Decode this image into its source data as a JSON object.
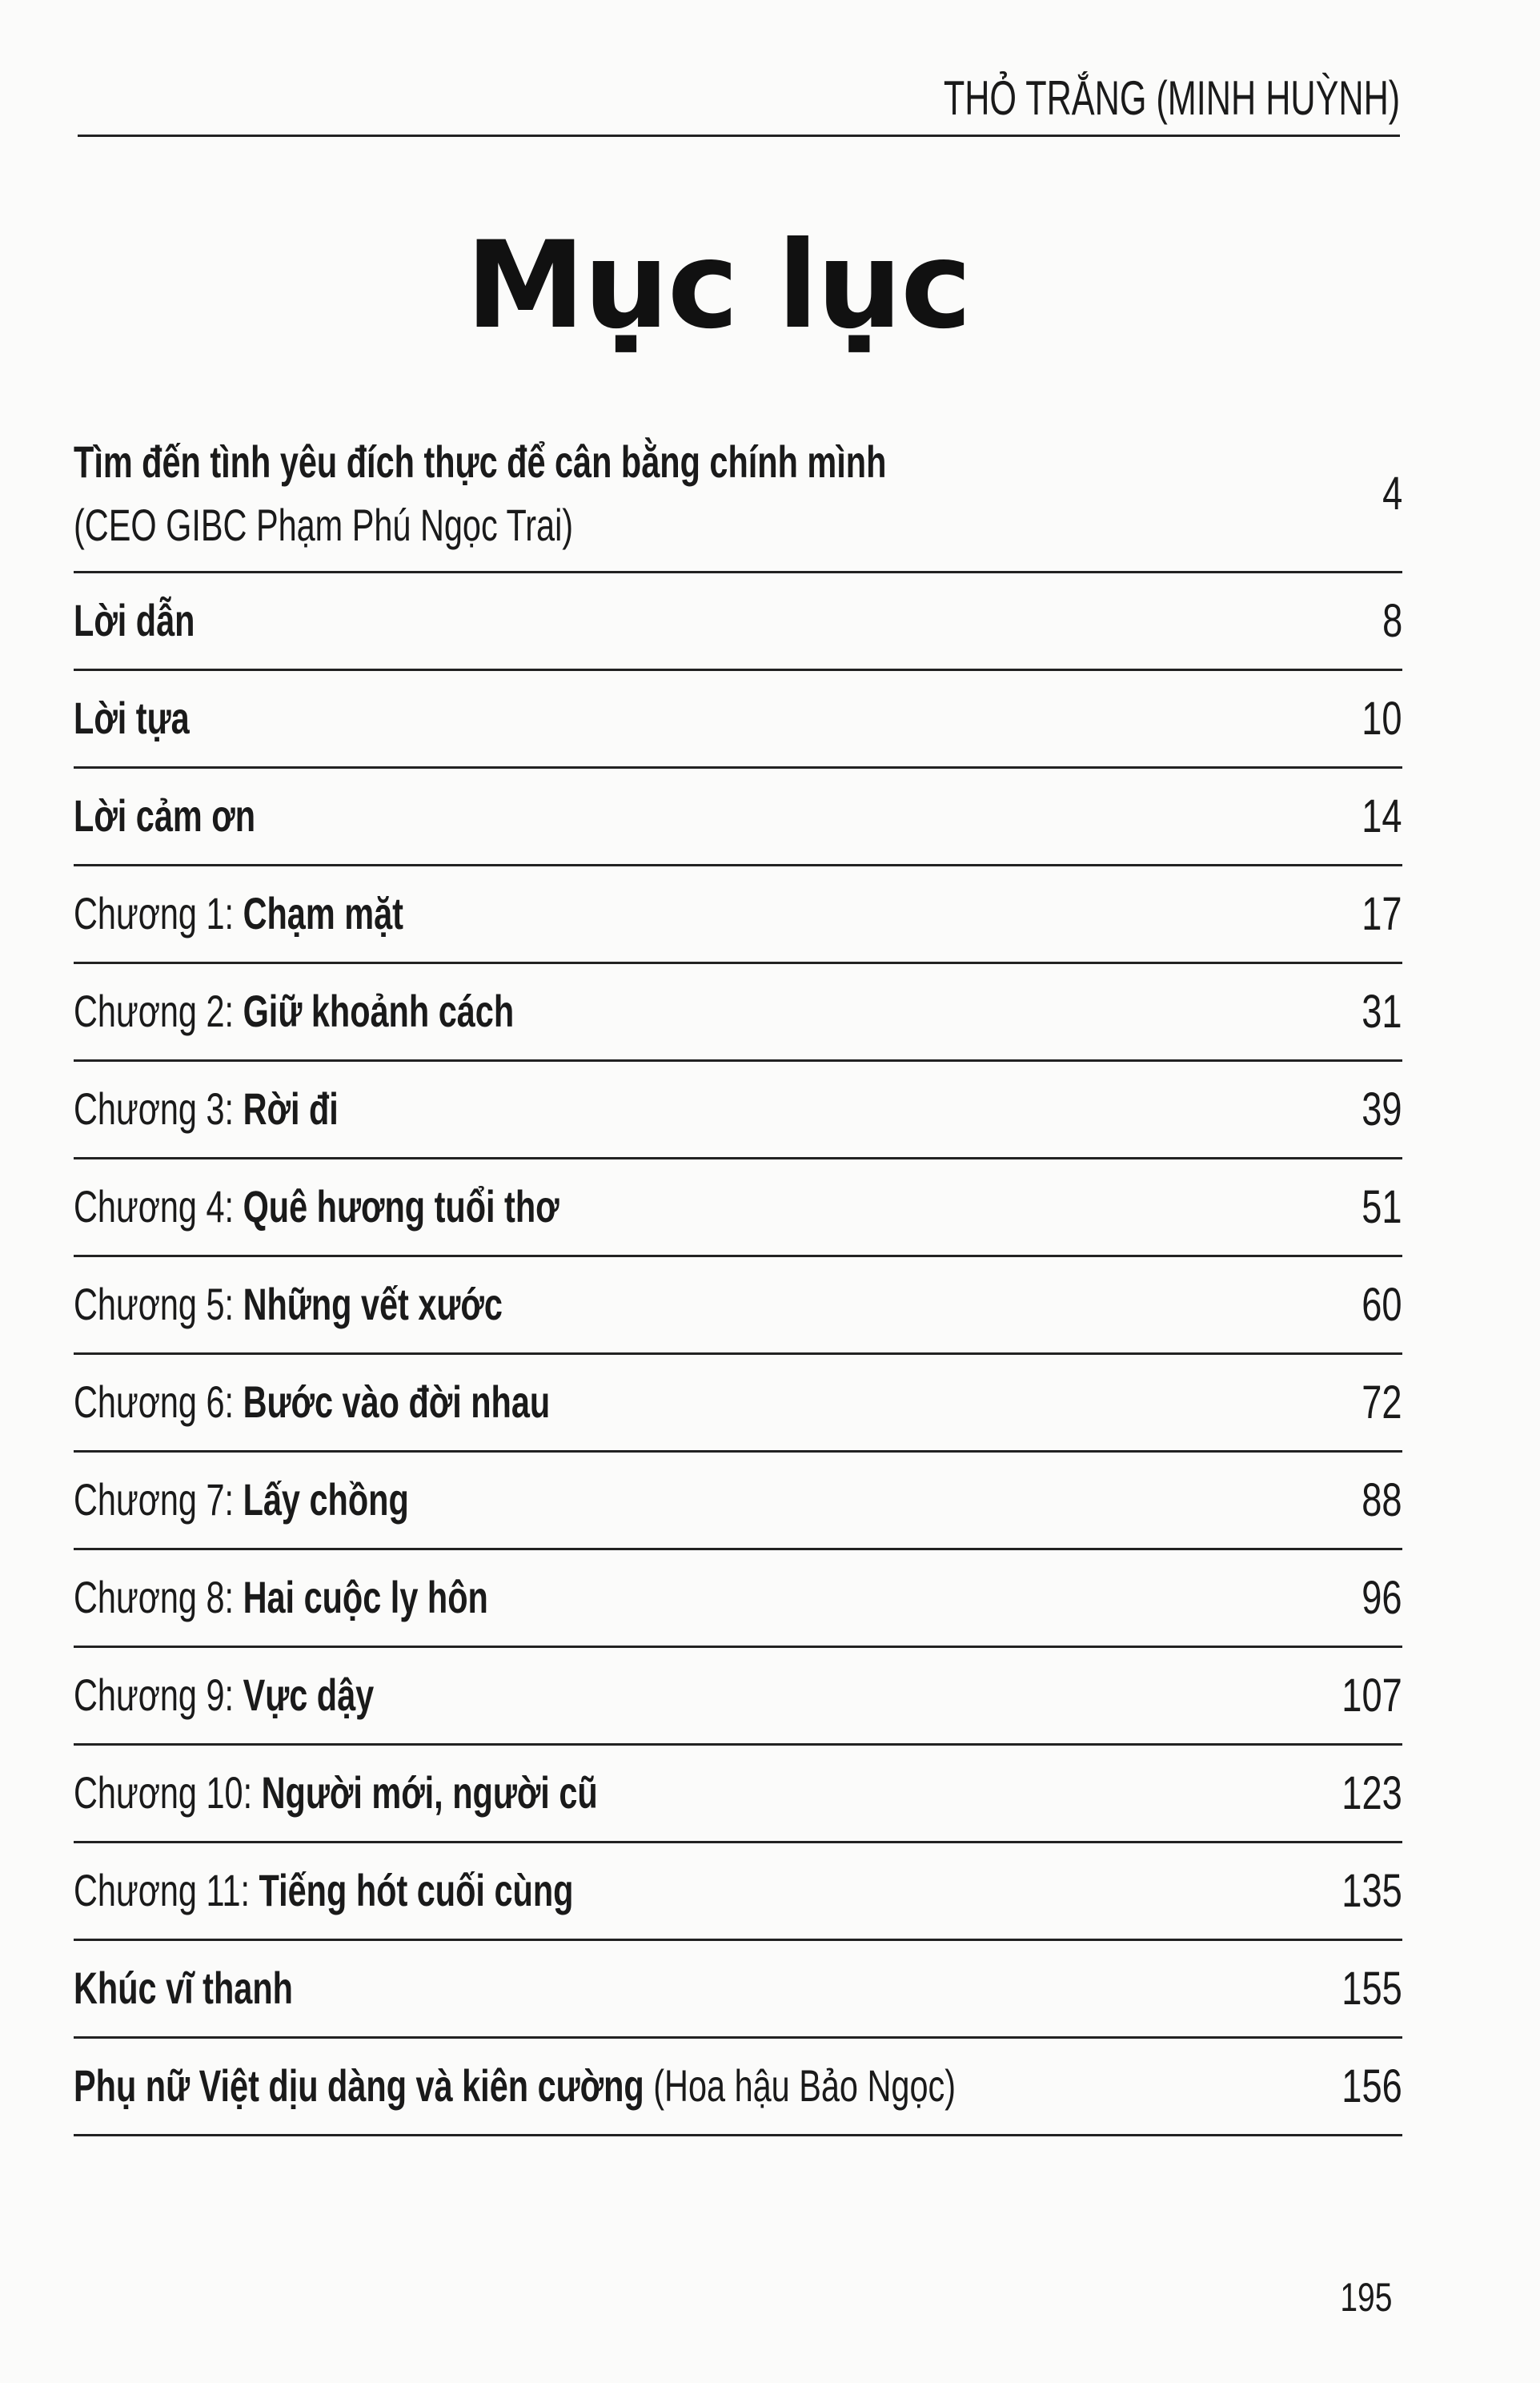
{
  "header": {
    "running_head": "THỎ TRẮNG (MINH HUỲNH)"
  },
  "title": "Mục lục",
  "entries": [
    {
      "prefix": "",
      "title": "Tìm đến tình yêu đích thực để cân bằng chính mình",
      "suffix": "(CEO GIBC Phạm Phú Ngọc Trai)",
      "page": "4"
    },
    {
      "prefix": "",
      "title": "Lời dẫn",
      "suffix": "",
      "page": "8"
    },
    {
      "prefix": "",
      "title": "Lời tựa",
      "suffix": "",
      "page": "10"
    },
    {
      "prefix": "",
      "title": "Lời cảm ơn",
      "suffix": "",
      "page": "14"
    },
    {
      "prefix": "Chương 1: ",
      "title": "Chạm mặt",
      "suffix": "",
      "page": "17"
    },
    {
      "prefix": "Chương 2: ",
      "title": "Giữ khoảnh cách",
      "suffix": "",
      "page": "31"
    },
    {
      "prefix": "Chương 3: ",
      "title": "Rời đi",
      "suffix": "",
      "page": "39"
    },
    {
      "prefix": "Chương 4: ",
      "title": "Quê hương tuổi thơ",
      "suffix": "",
      "page": "51"
    },
    {
      "prefix": "Chương 5: ",
      "title": "Những vết xước",
      "suffix": "",
      "page": "60"
    },
    {
      "prefix": "Chương 6: ",
      "title": "Bước vào đời nhau",
      "suffix": "",
      "page": "72"
    },
    {
      "prefix": "Chương 7: ",
      "title": "Lấy chồng",
      "suffix": "",
      "page": "88"
    },
    {
      "prefix": "Chương 8: ",
      "title": "Hai cuộc ly hôn",
      "suffix": "",
      "page": "96"
    },
    {
      "prefix": "Chương 9: ",
      "title": "Vực dậy",
      "suffix": "",
      "page": "107"
    },
    {
      "prefix": "Chương 10: ",
      "title": "Người mới, người cũ",
      "suffix": "",
      "page": "123"
    },
    {
      "prefix": "Chương 11: ",
      "title": "Tiếng hót cuối cùng",
      "suffix": "",
      "page": "135"
    },
    {
      "prefix": "",
      "title": "Khúc vĩ thanh",
      "suffix": "",
      "page": "155"
    },
    {
      "prefix": "",
      "title": "Phụ nữ Việt dịu dàng và kiên cường",
      "suffix": " (Hoa hậu Bảo Ngọc)",
      "page": "156"
    }
  ],
  "footer": {
    "page_number": "195"
  }
}
